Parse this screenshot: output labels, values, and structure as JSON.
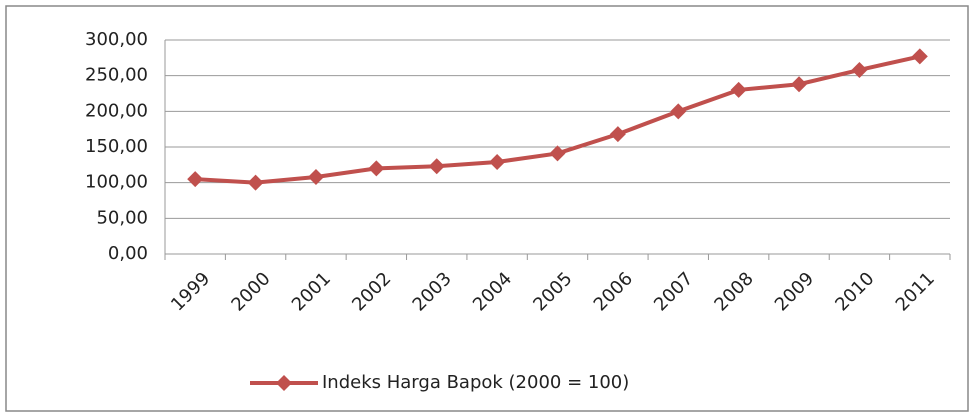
{
  "chart_data": {
    "type": "line",
    "categories": [
      "1999",
      "2000",
      "2001",
      "2002",
      "2003",
      "2004",
      "2005",
      "2006",
      "2007",
      "2008",
      "2009",
      "2010",
      "2011"
    ],
    "series": [
      {
        "name": "Indeks Harga Bapok (2000 = 100)",
        "color": "#c0504d",
        "values": [
          105,
          100,
          108,
          120,
          123,
          129,
          141,
          168,
          200,
          230,
          238,
          258,
          277
        ]
      }
    ],
    "ylim": [
      0,
      300
    ],
    "yticks": [
      {
        "value": 0,
        "label": "0,00"
      },
      {
        "value": 50,
        "label": "50,00"
      },
      {
        "value": 100,
        "label": "100,00"
      },
      {
        "value": 150,
        "label": "150,00"
      },
      {
        "value": 200,
        "label": "200,00"
      },
      {
        "value": 250,
        "label": "250,00"
      },
      {
        "value": 300,
        "label": "300,00"
      }
    ],
    "grid": true,
    "legend": "bottom"
  }
}
